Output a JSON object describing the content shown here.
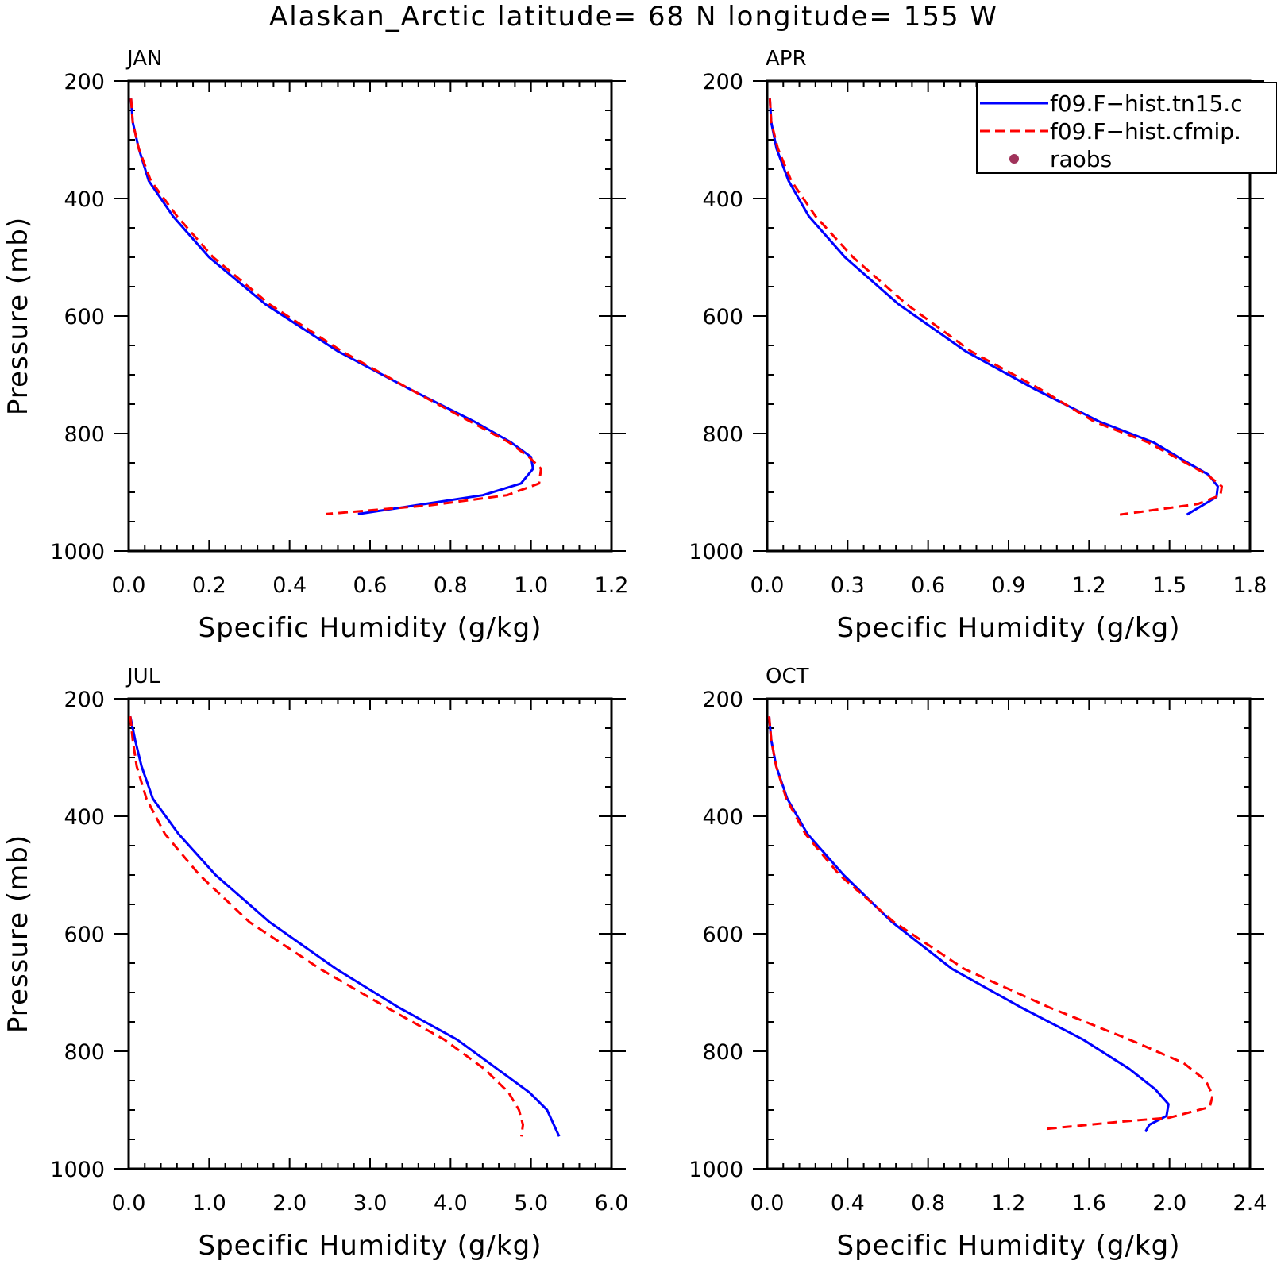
{
  "figure": {
    "title": "Alaskan_Arctic  latitude= 68 N longitude= 155 W"
  },
  "legend": {
    "entries": [
      {
        "label": "f09.F−hist.tn15.c",
        "color": "#0000ff",
        "style": "solid"
      },
      {
        "label": "f09.F−hist.cfmip.",
        "color": "#ff0000",
        "style": "dashed"
      },
      {
        "label": "raobs",
        "color": "#a0325a",
        "style": "dot"
      }
    ],
    "placement": "top-right of APR panel"
  },
  "chart_data": [
    {
      "type": "line",
      "title": "JAN",
      "xlabel": "Specific Humidity (g/kg)",
      "ylabel": "Pressure (mb)",
      "xlim": [
        0,
        1.2
      ],
      "ylim": [
        1000,
        200
      ],
      "xticks": [
        "0.0",
        "0.2",
        "0.4",
        "0.6",
        "0.8",
        "1.0",
        "1.2"
      ],
      "yticks": [
        "200",
        "400",
        "600",
        "800",
        "1000"
      ],
      "series": [
        {
          "name": "f09.F−hist.tn15.c",
          "color": "#0000ff",
          "style": "solid",
          "points": [
            [
              0.006,
              230
            ],
            [
              0.01,
              270
            ],
            [
              0.025,
              315
            ],
            [
              0.05,
              370
            ],
            [
              0.11,
              430
            ],
            [
              0.2,
              500
            ],
            [
              0.34,
              580
            ],
            [
              0.52,
              660
            ],
            [
              0.7,
              725
            ],
            [
              0.86,
              780
            ],
            [
              0.95,
              815
            ],
            [
              1.0,
              840
            ],
            [
              1.005,
              860
            ],
            [
              0.975,
              885
            ],
            [
              0.88,
              905
            ],
            [
              0.57,
              937
            ]
          ]
        },
        {
          "name": "f09.F−hist.cfmip.",
          "color": "#ff0000",
          "style": "dashed",
          "points": [
            [
              0.006,
              230
            ],
            [
              0.01,
              270
            ],
            [
              0.025,
              315
            ],
            [
              0.055,
              370
            ],
            [
              0.12,
              430
            ],
            [
              0.21,
              500
            ],
            [
              0.35,
              580
            ],
            [
              0.53,
              660
            ],
            [
              0.7,
              725
            ],
            [
              0.85,
              780
            ],
            [
              0.945,
              815
            ],
            [
              0.995,
              840
            ],
            [
              1.025,
              860
            ],
            [
              1.02,
              885
            ],
            [
              0.94,
              905
            ],
            [
              0.75,
              922
            ],
            [
              0.49,
              937
            ]
          ]
        }
      ],
      "raobs": []
    },
    {
      "type": "line",
      "title": "APR",
      "xlabel": "Specific Humidity (g/kg)",
      "ylabel": "",
      "xlim": [
        0,
        1.8
      ],
      "ylim": [
        1000,
        200
      ],
      "xticks": [
        "0.0",
        "0.3",
        "0.6",
        "0.9",
        "1.2",
        "1.5",
        "1.8"
      ],
      "yticks": [
        "200",
        "400",
        "600",
        "800",
        "1000"
      ],
      "series": [
        {
          "name": "f09.F−hist.tn15.c",
          "color": "#0000ff",
          "style": "solid",
          "points": [
            [
              0.01,
              230
            ],
            [
              0.015,
              270
            ],
            [
              0.035,
              315
            ],
            [
              0.08,
              370
            ],
            [
              0.155,
              430
            ],
            [
              0.29,
              500
            ],
            [
              0.49,
              580
            ],
            [
              0.74,
              660
            ],
            [
              1.0,
              725
            ],
            [
              1.24,
              780
            ],
            [
              1.44,
              815
            ],
            [
              1.55,
              845
            ],
            [
              1.645,
              870
            ],
            [
              1.68,
              890
            ],
            [
              1.675,
              908
            ],
            [
              1.565,
              938
            ]
          ]
        },
        {
          "name": "f09.F−hist.cfmip.",
          "color": "#ff0000",
          "style": "dashed",
          "points": [
            [
              0.01,
              230
            ],
            [
              0.015,
              270
            ],
            [
              0.04,
              315
            ],
            [
              0.09,
              370
            ],
            [
              0.18,
              430
            ],
            [
              0.32,
              500
            ],
            [
              0.52,
              580
            ],
            [
              0.76,
              660
            ],
            [
              1.02,
              725
            ],
            [
              1.22,
              780
            ],
            [
              1.42,
              815
            ],
            [
              1.54,
              845
            ],
            [
              1.64,
              870
            ],
            [
              1.695,
              890
            ],
            [
              1.69,
              905
            ],
            [
              1.605,
              920
            ],
            [
              1.315,
              938
            ]
          ]
        }
      ],
      "raobs": []
    },
    {
      "type": "line",
      "title": "JUL",
      "xlabel": "Specific Humidity (g/kg)",
      "ylabel": "Pressure (mb)",
      "xlim": [
        0,
        6.0
      ],
      "ylim": [
        1000,
        200
      ],
      "xticks": [
        "0.0",
        "1.0",
        "2.0",
        "3.0",
        "4.0",
        "5.0",
        "6.0"
      ],
      "yticks": [
        "200",
        "400",
        "600",
        "800",
        "1000"
      ],
      "series": [
        {
          "name": "f09.F−hist.tn15.c",
          "color": "#0000ff",
          "style": "solid",
          "points": [
            [
              0.02,
              230
            ],
            [
              0.08,
              270
            ],
            [
              0.16,
              315
            ],
            [
              0.3,
              370
            ],
            [
              0.62,
              430
            ],
            [
              1.08,
              500
            ],
            [
              1.75,
              580
            ],
            [
              2.58,
              660
            ],
            [
              3.35,
              725
            ],
            [
              4.08,
              780
            ],
            [
              4.68,
              840
            ],
            [
              4.98,
              870
            ],
            [
              5.2,
              900
            ],
            [
              5.35,
              945
            ]
          ]
        },
        {
          "name": "f09.F−hist.cfmip.",
          "color": "#ff0000",
          "style": "dashed",
          "points": [
            [
              0.02,
              230
            ],
            [
              0.05,
              270
            ],
            [
              0.1,
              315
            ],
            [
              0.22,
              370
            ],
            [
              0.45,
              430
            ],
            [
              0.88,
              500
            ],
            [
              1.5,
              580
            ],
            [
              2.38,
              660
            ],
            [
              3.2,
              725
            ],
            [
              3.92,
              780
            ],
            [
              4.42,
              830
            ],
            [
              4.72,
              870
            ],
            [
              4.85,
              900
            ],
            [
              4.9,
              925
            ],
            [
              4.88,
              945
            ]
          ]
        }
      ],
      "raobs": []
    },
    {
      "type": "line",
      "title": "OCT",
      "xlabel": "Specific Humidity (g/kg)",
      "ylabel": "",
      "xlim": [
        0,
        2.4
      ],
      "ylim": [
        1000,
        200
      ],
      "xticks": [
        "0.0",
        "0.4",
        "0.8",
        "1.2",
        "1.6",
        "2.0",
        "2.4"
      ],
      "yticks": [
        "200",
        "400",
        "600",
        "800",
        "1000"
      ],
      "series": [
        {
          "name": "f09.F−hist.tn15.c",
          "color": "#0000ff",
          "style": "solid",
          "points": [
            [
              0.01,
              230
            ],
            [
              0.02,
              270
            ],
            [
              0.045,
              315
            ],
            [
              0.1,
              370
            ],
            [
              0.2,
              430
            ],
            [
              0.38,
              500
            ],
            [
              0.62,
              580
            ],
            [
              0.92,
              660
            ],
            [
              1.26,
              725
            ],
            [
              1.57,
              780
            ],
            [
              1.8,
              830
            ],
            [
              1.93,
              865
            ],
            [
              1.995,
              890
            ],
            [
              1.985,
              910
            ],
            [
              1.9,
              925
            ],
            [
              1.88,
              937
            ]
          ]
        },
        {
          "name": "f09.F−hist.cfmip.",
          "color": "#ff0000",
          "style": "dashed",
          "points": [
            [
              0.01,
              230
            ],
            [
              0.02,
              270
            ],
            [
              0.045,
              315
            ],
            [
              0.095,
              370
            ],
            [
              0.19,
              430
            ],
            [
              0.36,
              500
            ],
            [
              0.63,
              580
            ],
            [
              0.98,
              660
            ],
            [
              1.4,
              725
            ],
            [
              1.8,
              780
            ],
            [
              2.07,
              820
            ],
            [
              2.18,
              850
            ],
            [
              2.215,
              875
            ],
            [
              2.2,
              895
            ],
            [
              2.0,
              913
            ],
            [
              1.75,
              920
            ],
            [
              1.39,
              932
            ]
          ]
        }
      ],
      "raobs": []
    }
  ]
}
